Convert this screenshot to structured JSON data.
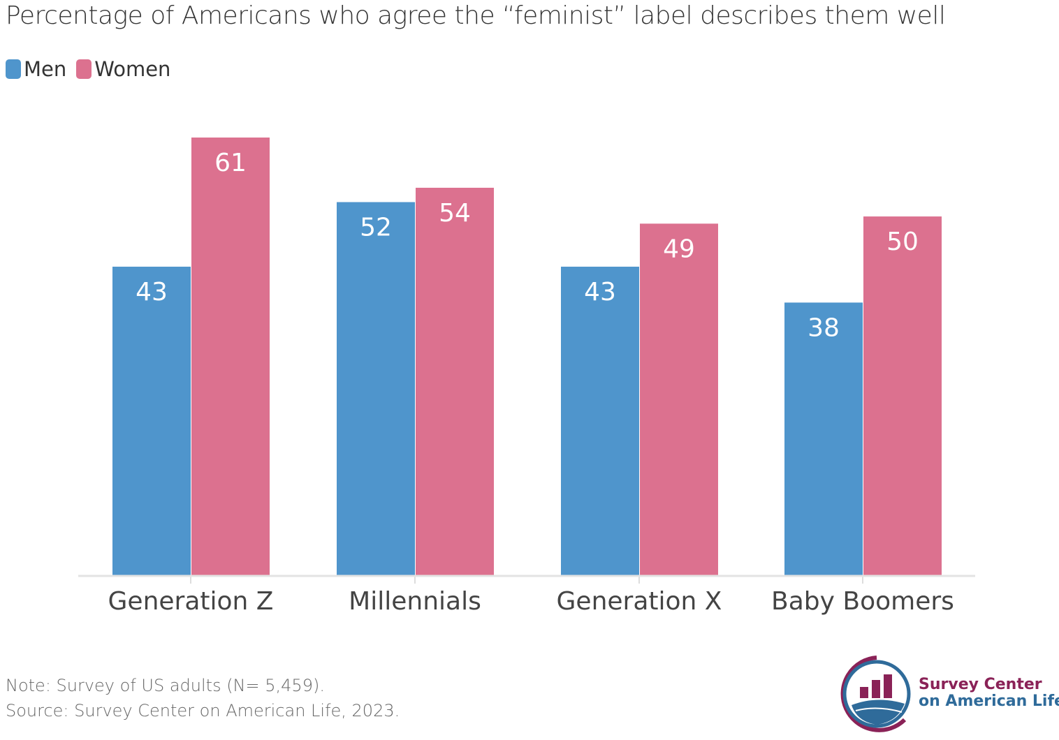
{
  "chart_data": {
    "type": "bar",
    "title": "Percentage of Americans who agree the “feminist” label describes them well",
    "categories": [
      "Generation Z",
      "Millennials",
      "Generation X",
      "Baby Boomers"
    ],
    "series": [
      {
        "name": "Men",
        "values": [
          43,
          52,
          43,
          38
        ],
        "color": "#4f95cc"
      },
      {
        "name": "Women",
        "values": [
          61,
          54,
          49,
          50
        ],
        "color": "#dc718f"
      }
    ],
    "ylim": [
      0,
      80
    ],
    "grid": false,
    "legend_placement": "top-left",
    "data_labels": true
  },
  "note": "Note: Survey of US adults (N= 5,459).",
  "source": "Source: Survey Center on American Life, 2023.",
  "logo": {
    "line1": "Survey Center",
    "line2": "on American Life",
    "colors": [
      "#8a2257",
      "#2f6b9a"
    ]
  }
}
